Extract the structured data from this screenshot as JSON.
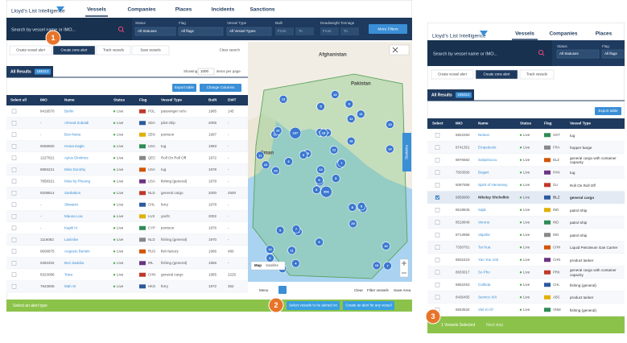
{
  "left": {
    "nav": {
      "logo": "Lloyd's List Intelligence",
      "tabs": [
        "Vessels",
        "Companies",
        "Places",
        "Incidents",
        "Sanctions"
      ]
    },
    "filters": {
      "search": "Search by vessel name or IMO...",
      "selects": [
        {
          "label": "Status",
          "value": "All Statuses"
        },
        {
          "label": "Flag",
          "value": "All flags"
        },
        {
          "label": "Vessel Type",
          "value": "All Vessel Types"
        }
      ],
      "ranges": [
        {
          "label": "Built",
          "from": "From",
          "to": "To"
        },
        {
          "label": "Deadweight Tonnage",
          "from": "From",
          "to": "To"
        }
      ],
      "more": "More Filters"
    },
    "toolbar": [
      "Create vessel alert",
      "Create zone alert",
      "Track vessels",
      "Save vessels"
    ],
    "clear": "Clear search",
    "results": {
      "label": "All Results",
      "count": "185312",
      "showing": "Showing",
      "per_page": "1000",
      "per_page_suffix": "items per page",
      "export": "Export table",
      "columns": "Change Columns"
    },
    "table": {
      "headers": [
        "Select all",
        "IMO",
        "Name",
        "Status",
        "Flag",
        "Vessel Type",
        "Built",
        "DWT"
      ],
      "rows": [
        [
          "8419570",
          "Berlin",
          "Live",
          "POL",
          "passenger ro/ro",
          "1985",
          "145"
        ],
        [
          "-",
          "Ahmad Zubaidi",
          "Live",
          "SDA",
          "pilot ship",
          "2006",
          "-"
        ],
        [
          "-",
          "Bon Neria",
          "Live",
          "ZEN",
          "pontoon",
          "1997",
          "-"
        ],
        [
          "9068500",
          "Hvara Eagle",
          "Live",
          "USA",
          "tug",
          "1993",
          "-"
        ],
        [
          "1227821",
          "Ayios Dimitrios",
          "Live",
          "QEC",
          "Roll On Roll Off",
          "1972",
          "-"
        ],
        [
          "8855221",
          "Miss Dorothy",
          "Live",
          "USA",
          "tug",
          "1978",
          "-"
        ],
        [
          "7858321",
          "Miss by Phuong",
          "Live",
          "USA",
          "fishing (general)",
          "1978",
          "-"
        ],
        [
          "9208814",
          "Sanbakon",
          "Live",
          "NLD",
          "general cargo",
          "2000",
          "2500"
        ],
        [
          "-",
          "Skwanin",
          "Live",
          "CHL",
          "ferry",
          "1978",
          "-"
        ],
        [
          "-",
          "Mauna Loa",
          "Live",
          "LUX",
          "yacht",
          "2002",
          "-"
        ],
        [
          "-",
          "Kapili IV",
          "Live",
          "CYP",
          "pontoon",
          "1976",
          "-"
        ],
        [
          "1116082",
          "Lasimbe",
          "Live",
          "NLD",
          "fishing (general)",
          "1970",
          "-"
        ],
        [
          "9606875",
          "Augusto Bentini",
          "Live",
          "RUS",
          "fish factory",
          "1986",
          "480"
        ],
        [
          "5392202",
          "Bori Zadolia",
          "Live",
          "IRL",
          "fishing (general)",
          "1955",
          "-"
        ],
        [
          "8323086",
          "Tetra",
          "Live",
          "CHN",
          "general cargo",
          "1985",
          "2225"
        ],
        [
          "7643506",
          "Mah Sr",
          "Live",
          "HKG",
          "ferry",
          "1972",
          "352"
        ]
      ]
    },
    "map": {
      "labels": [
        "Afghanistan",
        "Pakistan",
        "Oman"
      ],
      "clusters": [
        "306",
        "12",
        "8",
        "14",
        "6",
        "21",
        "9",
        "17",
        "11",
        "5",
        "13",
        "7",
        "24",
        "10",
        "8",
        "16",
        "4",
        "19",
        "12",
        "9",
        "15",
        "6",
        "11",
        "18",
        "7",
        "13",
        "10",
        "5",
        "22",
        "8",
        "14",
        "9",
        "6",
        "12",
        "167",
        "11",
        "7",
        "15",
        "10",
        "8",
        "13",
        "9",
        "6",
        "20",
        "4",
        "11"
      ],
      "map_types": [
        "Map",
        "Satellite"
      ],
      "side_tab": "Statistics",
      "controls": [
        "Menu",
        "Clear",
        "Filter vessels",
        "Save Area"
      ]
    },
    "footer": {
      "prompt": "Select an alert type",
      "buttons": [
        "Select vessels to be alerted on",
        "Create an alert for any vessel"
      ]
    }
  },
  "right": {
    "nav": {
      "logo": "Lloyd's List Intelligence",
      "tabs": [
        "Vessels",
        "Companies",
        "Places"
      ]
    },
    "filters": {
      "search": "Search by vessel name or IMO...",
      "selects": [
        {
          "label": "Status",
          "value": "All Statuses"
        },
        {
          "label": "Flag",
          "value": "All flags"
        }
      ]
    },
    "toolbar": [
      "Create vessel alert",
      "Create zone alert",
      "Track vessels"
    ],
    "results": {
      "label": "All Results",
      "count": "185312",
      "export": "Export table"
    },
    "table": {
      "headers": [
        "Select",
        "IMO",
        "Name",
        "Status",
        "Flag",
        "Vessel Type"
      ],
      "selected_index": 5,
      "rows": [
        [
          "6822250",
          "Nelson",
          "Live",
          "SGT",
          "tug"
        ],
        [
          "8741351",
          "Empedocle",
          "Live",
          "FRA",
          "hopper barge"
        ],
        [
          "8876582",
          "Subpinoccu",
          "Live",
          "BLZ",
          "general cargo with container capacity"
        ],
        [
          "7503566",
          "Bogart",
          "Live",
          "PAN",
          "tug"
        ],
        [
          "5087558",
          "Spirit of Hennessy",
          "Live",
          "ZLI",
          "Roll On Roll Off"
        ],
        [
          "6859900",
          "Nikolay Shchelkin",
          "Live",
          "BLZ",
          "general cargo"
        ],
        [
          "8518845",
          "Sajik",
          "Live",
          "IND",
          "patrol ship"
        ],
        [
          "8518849",
          "Verone",
          "Live",
          "IND",
          "patrol ship"
        ],
        [
          "8713958",
          "Vapshe",
          "Live",
          "IND",
          "patrol ship"
        ],
        [
          "7330761",
          "Tai Hua",
          "Live",
          "CHN",
          "Liquid Petroleum Gas Carrier"
        ],
        [
          "8832423",
          "Yao You 102",
          "Live",
          "CHN",
          "product tanker"
        ],
        [
          "8833017",
          "So Pho",
          "Live",
          "PRK",
          "general cargo with container capacity"
        ],
        [
          "6852253",
          "Calhida",
          "Live",
          "CHL",
          "fishing (general)"
        ],
        [
          "8436455",
          "Service XIII",
          "Live",
          "ABC",
          "product tanker"
        ],
        [
          "6833534",
          "Viet Ki 07",
          "Live",
          "VNM",
          "fishing (general)"
        ]
      ]
    },
    "footer": {
      "selected": "1 Vessels Selected",
      "next": "Next step"
    }
  },
  "callouts": [
    "1",
    "2",
    "3"
  ]
}
